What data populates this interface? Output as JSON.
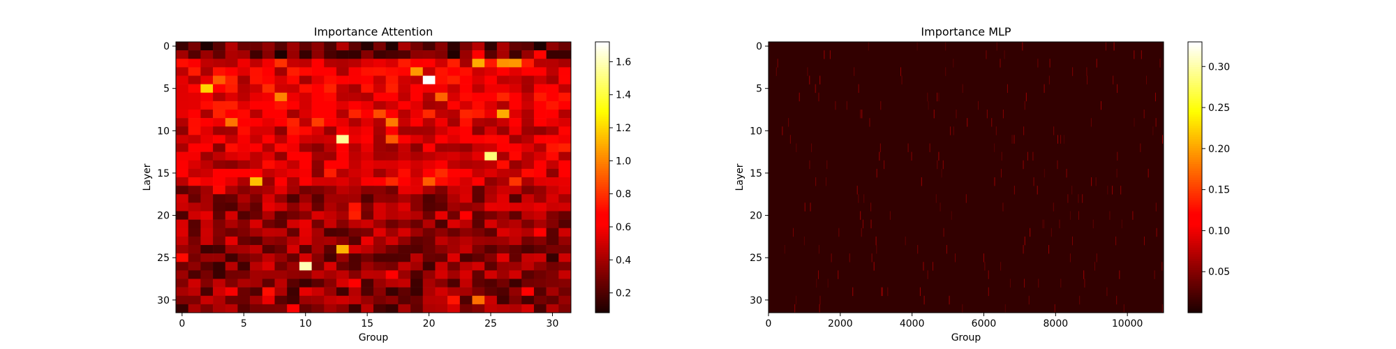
{
  "chart_data": [
    {
      "type": "heatmap",
      "title": "Importance Attention",
      "xlabel": "Group",
      "ylabel": "Layer",
      "rows": 32,
      "cols": 32,
      "x_ticks": [
        0,
        5,
        10,
        15,
        20,
        25,
        30
      ],
      "y_ticks": [
        0,
        5,
        10,
        15,
        20,
        25,
        30
      ],
      "colormap": "hot",
      "colorbar_range": [
        0.08,
        1.72
      ],
      "colorbar_ticks": [
        0.2,
        0.4,
        0.6,
        0.8,
        1.0,
        1.2,
        1.4,
        1.6
      ],
      "colorbar_tick_labels": [
        "0.2",
        "0.4",
        "0.6",
        "0.8",
        "1.0",
        "1.2",
        "1.4",
        "1.6"
      ],
      "notable_cells": [
        {
          "layer": 4,
          "group": 20,
          "value": 1.72
        },
        {
          "layer": 11,
          "group": 13,
          "value": 1.55
        },
        {
          "layer": 13,
          "group": 25,
          "value": 1.5
        },
        {
          "layer": 26,
          "group": 10,
          "value": 1.6
        },
        {
          "layer": 5,
          "group": 2,
          "value": 1.2
        },
        {
          "layer": 16,
          "group": 6,
          "value": 1.15
        },
        {
          "layer": 24,
          "group": 13,
          "value": 1.12
        },
        {
          "layer": 8,
          "group": 26,
          "value": 1.1
        },
        {
          "layer": 2,
          "group": 24,
          "value": 1.1
        },
        {
          "layer": 2,
          "group": 27,
          "value": 1.05
        },
        {
          "layer": 6,
          "group": 8,
          "value": 1.0
        },
        {
          "layer": 30,
          "group": 24,
          "value": 0.95
        }
      ]
    },
    {
      "type": "heatmap",
      "title": "Importance MLP",
      "xlabel": "Group",
      "ylabel": "Layer",
      "rows": 32,
      "cols": 11008,
      "x_ticks": [
        0,
        2000,
        4000,
        6000,
        8000,
        10000
      ],
      "y_ticks": [
        0,
        5,
        10,
        15,
        20,
        25,
        30
      ],
      "colormap": "hot",
      "colorbar_range": [
        0.0,
        0.33
      ],
      "colorbar_ticks": [
        0.05,
        0.1,
        0.15,
        0.2,
        0.25,
        0.3
      ],
      "colorbar_tick_labels": [
        "0.05",
        "0.10",
        "0.15",
        "0.20",
        "0.25",
        "0.30"
      ],
      "background_value": 0.01
    }
  ]
}
